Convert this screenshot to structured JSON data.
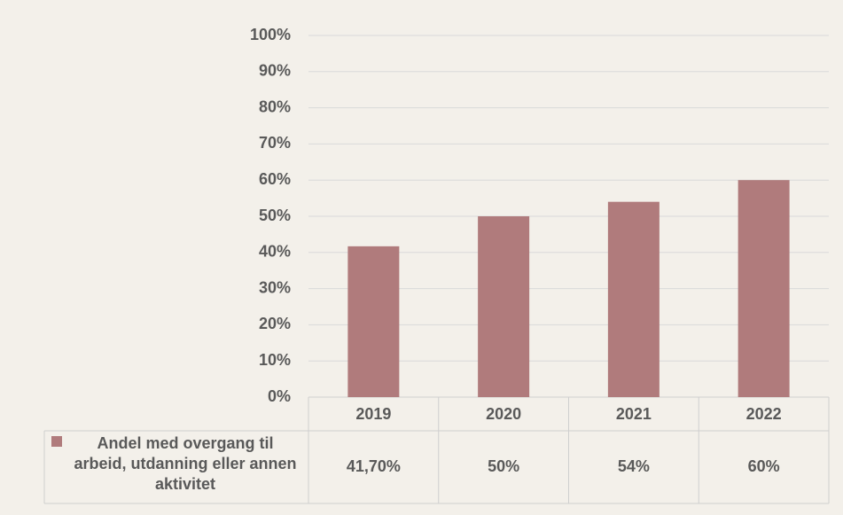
{
  "chart_data": {
    "type": "bar",
    "categories": [
      "2019",
      "2020",
      "2021",
      "2022"
    ],
    "series": [
      {
        "name": "Andel med overgang til arbeid, utdanning eller annen aktivitet",
        "color": "#b07b7c",
        "values": [
          41.7,
          50,
          54,
          60
        ],
        "value_labels": [
          "41,70%",
          "50%",
          "54%",
          "60%"
        ]
      }
    ],
    "ylim": [
      0,
      100
    ],
    "yticks": [
      {
        "value": 0,
        "label": "0%"
      },
      {
        "value": 10,
        "label": "10%"
      },
      {
        "value": 20,
        "label": "20%"
      },
      {
        "value": 30,
        "label": "30%"
      },
      {
        "value": 40,
        "label": "40%"
      },
      {
        "value": 50,
        "label": "50%"
      },
      {
        "value": 60,
        "label": "60%"
      },
      {
        "value": 70,
        "label": "70%"
      },
      {
        "value": 80,
        "label": "80%"
      },
      {
        "value": 90,
        "label": "90%"
      },
      {
        "value": 100,
        "label": "100%"
      }
    ],
    "grid": true,
    "data_table": true
  }
}
